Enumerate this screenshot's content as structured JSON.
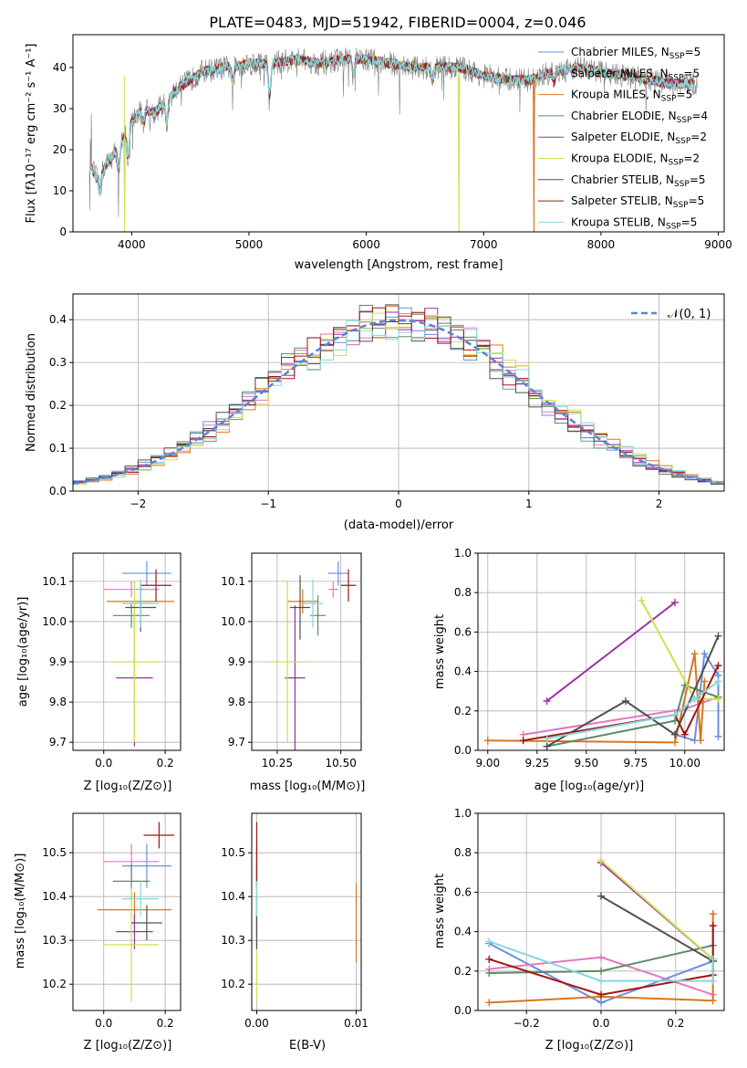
{
  "colors": [
    "#6b8fde",
    "#e377c2",
    "#d8761f",
    "#5b8a66",
    "#9b30a8",
    "#cfe04a",
    "#505050",
    "#a31515",
    "#86d6dd"
  ],
  "chart_data": [
    {
      "id": "spectrum",
      "type": "line",
      "title": "PLATE=0483, MJD=51942, FIBERID=0004, z=0.046",
      "xlabel": "wavelength [Angstrom, rest frame]",
      "ylabel": "Flux [fλ10⁻¹⁷ erg cm⁻² s⁻¹ A⁻¹]",
      "xlim": [
        3500,
        9050
      ],
      "ylim": [
        0,
        48
      ],
      "xticks": [
        4000,
        5000,
        6000,
        7000,
        8000,
        9000
      ],
      "yticks": [
        0,
        10,
        20,
        30,
        40
      ],
      "legend_position": "upper-right",
      "continuum": [
        [
          3640,
          17
        ],
        [
          3700,
          13
        ],
        [
          3800,
          17
        ],
        [
          3900,
          21
        ],
        [
          4000,
          27
        ],
        [
          4100,
          30
        ],
        [
          4200,
          29
        ],
        [
          4300,
          32
        ],
        [
          4400,
          35
        ],
        [
          4600,
          39
        ],
        [
          4800,
          40
        ],
        [
          5000,
          41
        ],
        [
          5200,
          41
        ],
        [
          5400,
          42
        ],
        [
          5600,
          41
        ],
        [
          5800,
          42
        ],
        [
          6000,
          42
        ],
        [
          6200,
          41
        ],
        [
          6400,
          40
        ],
        [
          6600,
          40
        ],
        [
          6800,
          40
        ],
        [
          7000,
          38
        ],
        [
          7200,
          37
        ],
        [
          7400,
          37
        ],
        [
          7600,
          39
        ],
        [
          7800,
          40
        ],
        [
          8000,
          39
        ],
        [
          8200,
          38
        ],
        [
          8400,
          37
        ],
        [
          8600,
          36
        ],
        [
          8800,
          36
        ]
      ],
      "absorption_dips": [
        [
          3730,
          5
        ],
        [
          3890,
          6
        ],
        [
          3970,
          8
        ],
        [
          4100,
          4
        ],
        [
          4300,
          6
        ],
        [
          4860,
          4
        ],
        [
          5175,
          9
        ],
        [
          5890,
          4
        ],
        [
          6563,
          4
        ],
        [
          7600,
          3
        ]
      ],
      "dropouts": [
        {
          "x": 6790,
          "series": "Kroupa ELODIE, N_SSP=2"
        },
        {
          "x": 7430,
          "series": "Kroupa MILES, N_SSP=5"
        },
        {
          "x": 3940,
          "series": "Kroupa ELODIE, N_SSP=2"
        }
      ],
      "series": [
        {
          "label": "Chabrier MILES, N",
          "sub": "SSP",
          "suffix": "=5"
        },
        {
          "label": "Salpeter MILES, N",
          "sub": "SSP",
          "suffix": "=5"
        },
        {
          "label": "Kroupa MILES, N",
          "sub": "SSP",
          "suffix": "=5"
        },
        {
          "label": "Chabrier ELODIE, N",
          "sub": "SSP",
          "suffix": "=4"
        },
        {
          "label": "Salpeter ELODIE, N",
          "sub": "SSP",
          "suffix": "=2"
        },
        {
          "label": "Kroupa ELODIE, N",
          "sub": "SSP",
          "suffix": "=2"
        },
        {
          "label": "Chabrier STELIB, N",
          "sub": "SSP",
          "suffix": "=5"
        },
        {
          "label": "Salpeter STELIB, N",
          "sub": "SSP",
          "suffix": "=5"
        },
        {
          "label": "Kroupa STELIB, N",
          "sub": "SSP",
          "suffix": "=5"
        }
      ]
    },
    {
      "id": "residuals",
      "type": "histogram",
      "xlabel": "(data-model)/error",
      "ylabel": "Normed distribution",
      "xlim": [
        -2.5,
        2.5
      ],
      "ylim": [
        0,
        0.46
      ],
      "xticks": [
        -2,
        -1,
        0,
        1,
        2
      ],
      "yticks": [
        0.0,
        0.1,
        0.2,
        0.3,
        0.4
      ],
      "grid": true,
      "bin_width": 0.1,
      "reference_label": "𝒩(0, 1)",
      "legend_position": "upper-right"
    },
    {
      "id": "age_vs_Z",
      "type": "errorbar",
      "xlabel": "Z [log₁₀(Z/Z⊙)]",
      "ylabel": "age  [log₁₀(age/yr)]",
      "xlim": [
        -0.1,
        0.25
      ],
      "ylim": [
        9.68,
        10.17
      ],
      "xticks": [
        0.0,
        0.2
      ],
      "yticks": [
        9.7,
        9.8,
        9.9,
        10.0,
        10.1
      ],
      "grid": true,
      "points": [
        {
          "x": 0.14,
          "y": 10.12,
          "xerr": 0.08,
          "yerr": 0.03
        },
        {
          "x": 0.09,
          "y": 10.08,
          "xerr": 0.09,
          "yerr": 0.02
        },
        {
          "x": 0.12,
          "y": 10.05,
          "xerr": 0.11,
          "yerr": 0.03
        },
        {
          "x": 0.09,
          "y": 10.015,
          "xerr": 0.06,
          "yerr": 0.03
        },
        {
          "x": 0.1,
          "y": 9.86,
          "xerr": 0.06,
          "yerr": 0.17
        },
        {
          "x": 0.1,
          "y": 9.9,
          "xerr": 0.08,
          "yerr": 0.2
        },
        {
          "x": 0.12,
          "y": 10.035,
          "xerr": 0.05,
          "yerr": 0.06
        },
        {
          "x": 0.17,
          "y": 10.09,
          "xerr": 0.05,
          "yerr": 0.04
        },
        {
          "x": 0.12,
          "y": 10.045,
          "xerr": 0.06,
          "yerr": 0.06
        }
      ]
    },
    {
      "id": "age_vs_mass",
      "type": "errorbar",
      "xlabel": "mass [log₁₀(M/M⊙)]",
      "ylabel": "",
      "xlim": [
        10.15,
        10.58
      ],
      "ylim": [
        9.68,
        10.17
      ],
      "xticks": [
        10.25,
        10.5
      ],
      "yticks": [
        9.7,
        9.8,
        9.9,
        10.0,
        10.1
      ],
      "grid": true,
      "points": [
        {
          "x": 10.49,
          "y": 10.12,
          "xerr": 0.04,
          "yerr": 0.03
        },
        {
          "x": 10.47,
          "y": 10.08,
          "xerr": 0.02,
          "yerr": 0.02
        },
        {
          "x": 10.35,
          "y": 10.05,
          "xerr": 0.06,
          "yerr": 0.03
        },
        {
          "x": 10.41,
          "y": 10.015,
          "xerr": 0.03,
          "yerr": 0.05
        },
        {
          "x": 10.32,
          "y": 9.86,
          "xerr": 0.04,
          "yerr": 0.18
        },
        {
          "x": 10.29,
          "y": 9.9,
          "xerr": 0.07,
          "yerr": 0.2
        },
        {
          "x": 10.34,
          "y": 10.035,
          "xerr": 0.04,
          "yerr": 0.08
        },
        {
          "x": 10.53,
          "y": 10.09,
          "xerr": 0.03,
          "yerr": 0.04
        },
        {
          "x": 10.39,
          "y": 10.045,
          "xerr": 0.04,
          "yerr": 0.06
        }
      ]
    },
    {
      "id": "weight_vs_age",
      "type": "line",
      "xlabel": "age  [log₁₀(age/yr)]",
      "ylabel": "mass weight",
      "xlim": [
        8.95,
        10.2
      ],
      "ylim": [
        0,
        1.0
      ],
      "xticks": [
        9.0,
        9.25,
        9.5,
        9.75,
        10.0
      ],
      "xticklabels": [
        "9.00",
        "9.25",
        "9.50",
        "9.75",
        "10.00"
      ],
      "yticks": [
        0,
        0.2,
        0.4,
        0.6,
        0.8,
        1.0
      ],
      "yticklabels": [
        "0.0",
        "0.2",
        "0.4",
        "0.6",
        "0.8",
        "1.0"
      ],
      "grid": true,
      "series": [
        [
          [
            9.95,
            0.08
          ],
          [
            10.05,
            0.05
          ],
          [
            10.1,
            0.49
          ],
          [
            10.17,
            0.38
          ],
          [
            10.17,
            0.07
          ]
        ],
        [
          [
            9.18,
            0.08
          ],
          [
            10.0,
            0.21
          ],
          [
            10.17,
            0.27
          ]
        ],
        [
          [
            9.0,
            0.05
          ],
          [
            9.95,
            0.04
          ],
          [
            10.05,
            0.49
          ],
          [
            10.08,
            0.05
          ],
          [
            10.1,
            0.35
          ]
        ],
        [
          [
            9.3,
            0.02
          ],
          [
            9.95,
            0.15
          ],
          [
            10.0,
            0.33
          ],
          [
            10.17,
            0.27
          ]
        ],
        [
          [
            9.3,
            0.25
          ],
          [
            9.95,
            0.75
          ]
        ],
        [
          [
            9.78,
            0.76
          ],
          [
            10.05,
            0.26
          ],
          [
            10.17,
            0.26
          ]
        ],
        [
          [
            9.3,
            0.02
          ],
          [
            9.7,
            0.25
          ],
          [
            9.95,
            0.08
          ],
          [
            10.17,
            0.58
          ]
        ],
        [
          [
            9.18,
            0.05
          ],
          [
            9.95,
            0.18
          ],
          [
            10.0,
            0.08
          ],
          [
            10.17,
            0.43
          ]
        ],
        [
          [
            9.3,
            0.06
          ],
          [
            9.95,
            0.18
          ],
          [
            10.05,
            0.26
          ],
          [
            10.17,
            0.35
          ]
        ]
      ]
    },
    {
      "id": "mass_vs_Z",
      "type": "errorbar",
      "xlabel": "Z [log₁₀(Z/Z⊙)]",
      "ylabel": "mass [log₁₀(M/M⊙)]",
      "xlim": [
        -0.1,
        0.25
      ],
      "ylim": [
        10.14,
        10.59
      ],
      "xticks": [
        0.0,
        0.2
      ],
      "yticks": [
        10.2,
        10.3,
        10.4,
        10.5
      ],
      "grid": true,
      "points": [
        {
          "x": 0.14,
          "y": 10.47,
          "xerr": 0.08,
          "yerr": 0.05
        },
        {
          "x": 0.09,
          "y": 10.48,
          "xerr": 0.09,
          "yerr": 0.04
        },
        {
          "x": 0.1,
          "y": 10.37,
          "xerr": 0.12,
          "yerr": 0.04
        },
        {
          "x": 0.09,
          "y": 10.435,
          "xerr": 0.06,
          "yerr": 0.04
        },
        {
          "x": 0.1,
          "y": 10.32,
          "xerr": 0.06,
          "yerr": 0.04
        },
        {
          "x": 0.09,
          "y": 10.29,
          "xerr": 0.09,
          "yerr": 0.13
        },
        {
          "x": 0.14,
          "y": 10.34,
          "xerr": 0.05,
          "yerr": 0.04
        },
        {
          "x": 0.18,
          "y": 10.54,
          "xerr": 0.05,
          "yerr": 0.03
        },
        {
          "x": 0.12,
          "y": 10.395,
          "xerr": 0.06,
          "yerr": 0.04
        }
      ]
    },
    {
      "id": "mass_vs_ebv",
      "type": "errorbar",
      "xlabel": "E(B-V)",
      "ylabel": "",
      "xlim": [
        -0.0005,
        0.0105
      ],
      "ylim": [
        10.14,
        10.59
      ],
      "xticks": [
        0.0,
        0.01
      ],
      "xticklabels": [
        "0.00",
        "0.01"
      ],
      "yticks": [
        10.2,
        10.3,
        10.4,
        10.5
      ],
      "grid": true,
      "points": [
        {
          "x": 0.0,
          "y": 10.47,
          "yerr": 0.05
        },
        {
          "x": 0.0,
          "y": 10.48,
          "yerr": 0.04
        },
        {
          "x": 0.01,
          "y": 10.34,
          "yerr": 0.09
        },
        {
          "x": 0.0,
          "y": 10.435,
          "yerr": 0.04
        },
        {
          "x": 0.0,
          "y": 10.32,
          "yerr": 0.04
        },
        {
          "x": 0.0,
          "y": 10.29,
          "yerr": 0.13
        },
        {
          "x": 0.0,
          "y": 10.34,
          "yerr": 0.06
        },
        {
          "x": 0.0,
          "y": 10.5,
          "yerr": 0.07
        },
        {
          "x": 0.0,
          "y": 10.395,
          "yerr": 0.04
        }
      ]
    },
    {
      "id": "weight_vs_Z",
      "type": "line",
      "xlabel": "Z [log₁₀(Z/Z⊙)]",
      "ylabel": "mass weight",
      "xlim": [
        -0.33,
        0.33
      ],
      "ylim": [
        0,
        1.0
      ],
      "xticks": [
        -0.2,
        0.0,
        0.2
      ],
      "xticklabels": [
        "−0.2",
        "0.0",
        "0.2"
      ],
      "yticks": [
        0,
        0.2,
        0.4,
        0.6,
        0.8,
        1.0
      ],
      "yticklabels": [
        "0.0",
        "0.2",
        "0.4",
        "0.6",
        "0.8",
        "1.0"
      ],
      "grid": true,
      "series": [
        [
          [
            -0.3,
            0.34
          ],
          [
            0.0,
            0.04
          ],
          [
            0.3,
            0.25
          ]
        ],
        [
          [
            -0.3,
            0.21
          ],
          [
            0.0,
            0.27
          ],
          [
            0.3,
            0.08
          ]
        ],
        [
          [
            -0.3,
            0.04
          ],
          [
            0.0,
            0.07
          ],
          [
            0.3,
            0.05
          ],
          [
            0.3,
            0.49
          ]
        ],
        [
          [
            -0.3,
            0.19
          ],
          [
            0.0,
            0.2
          ],
          [
            0.3,
            0.33
          ]
        ],
        [
          [
            0.0,
            0.75
          ],
          [
            0.3,
            0.26
          ]
        ],
        [
          [
            0.0,
            0.76
          ],
          [
            0.3,
            0.26
          ]
        ],
        [
          [
            0.0,
            0.58
          ],
          [
            0.3,
            0.25
          ]
        ],
        [
          [
            -0.3,
            0.26
          ],
          [
            0.0,
            0.08
          ],
          [
            0.3,
            0.18
          ],
          [
            0.3,
            0.43
          ]
        ],
        [
          [
            -0.3,
            0.35
          ],
          [
            0.0,
            0.15
          ],
          [
            0.3,
            0.15
          ],
          [
            0.3,
            0.26
          ]
        ]
      ]
    }
  ]
}
